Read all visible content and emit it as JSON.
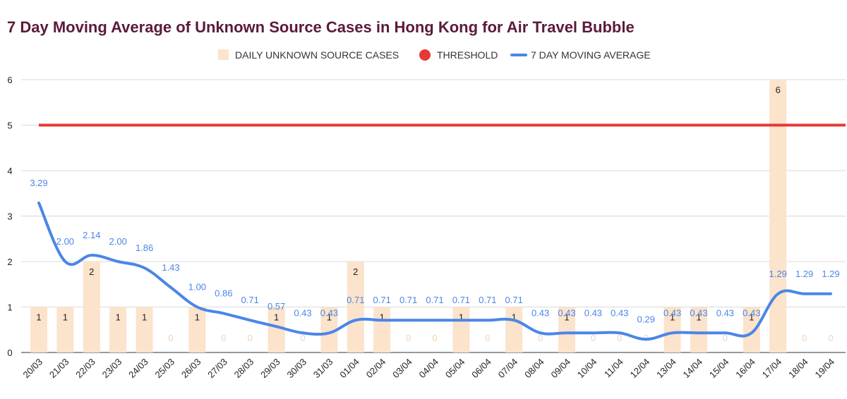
{
  "chart_data": {
    "type": "bar+line",
    "title": "7 Day Moving Average of Unknown Source Cases in Hong Kong for Air Travel Bubble",
    "ylim": [
      0,
      6
    ],
    "yticks": [
      0,
      1,
      2,
      3,
      4,
      5,
      6
    ],
    "grid": true,
    "legend_position": "top",
    "categories": [
      "20/03",
      "21/03",
      "22/03",
      "23/03",
      "24/03",
      "25/03",
      "26/03",
      "27/03",
      "28/03",
      "29/03",
      "30/03",
      "31/03",
      "01/04",
      "02/04",
      "03/04",
      "04/04",
      "05/04",
      "06/04",
      "07/04",
      "08/04",
      "09/04",
      "10/04",
      "11/04",
      "12/04",
      "13/04",
      "14/04",
      "15/04",
      "16/04",
      "17/04",
      "18/04",
      "19/04"
    ],
    "series": [
      {
        "name": "DAILY UNKNOWN SOURCE CASES",
        "kind": "bar",
        "color": "#fbe3cc",
        "values": [
          1,
          1,
          2,
          1,
          1,
          0,
          1,
          0,
          0,
          1,
          0,
          1,
          2,
          1,
          0,
          0,
          1,
          0,
          1,
          0,
          1,
          0,
          0,
          0,
          1,
          1,
          0,
          1,
          6,
          0,
          0
        ],
        "labels": [
          "1",
          "1",
          "2",
          "1",
          "1",
          "0",
          "1",
          "0",
          "0",
          "1",
          "0",
          "1",
          "2",
          "1",
          "0",
          "0",
          "1",
          "0",
          "1",
          "0",
          "1",
          "0",
          "0",
          "0",
          "1",
          "1",
          "0",
          "1",
          "6",
          "0",
          "0"
        ]
      },
      {
        "name": "THRESHOLD",
        "kind": "line",
        "color": "#e53935",
        "values": [
          5,
          5,
          5,
          5,
          5,
          5,
          5,
          5,
          5,
          5,
          5,
          5,
          5,
          5,
          5,
          5,
          5,
          5,
          5,
          5,
          5,
          5,
          5,
          5,
          5,
          5,
          5,
          5,
          5,
          5,
          5
        ]
      },
      {
        "name": "7 DAY MOVING AVERAGE",
        "kind": "line",
        "color": "#4a86e8",
        "values": [
          3.29,
          2.0,
          2.14,
          2.0,
          1.86,
          1.43,
          1.0,
          0.86,
          0.71,
          0.57,
          0.43,
          0.43,
          0.71,
          0.71,
          0.71,
          0.71,
          0.71,
          0.71,
          0.71,
          0.43,
          0.43,
          0.43,
          0.43,
          0.29,
          0.43,
          0.43,
          0.43,
          0.43,
          1.29,
          1.29,
          1.29
        ],
        "labels": [
          "3.29",
          "2.00",
          "2.14",
          "2.00",
          "1.86",
          "1.43",
          "1.00",
          "0.86",
          "0.71",
          "0.57",
          "0.43",
          "0.43",
          "0.71",
          "0.71",
          "0.71",
          "0.71",
          "0.71",
          "0.71",
          "0.71",
          "0.43",
          "0.43",
          "0.43",
          "0.43",
          "0.29",
          "0.43",
          "0.43",
          "0.43",
          "0.43",
          "1.29",
          "1.29",
          "1.29"
        ]
      }
    ]
  }
}
